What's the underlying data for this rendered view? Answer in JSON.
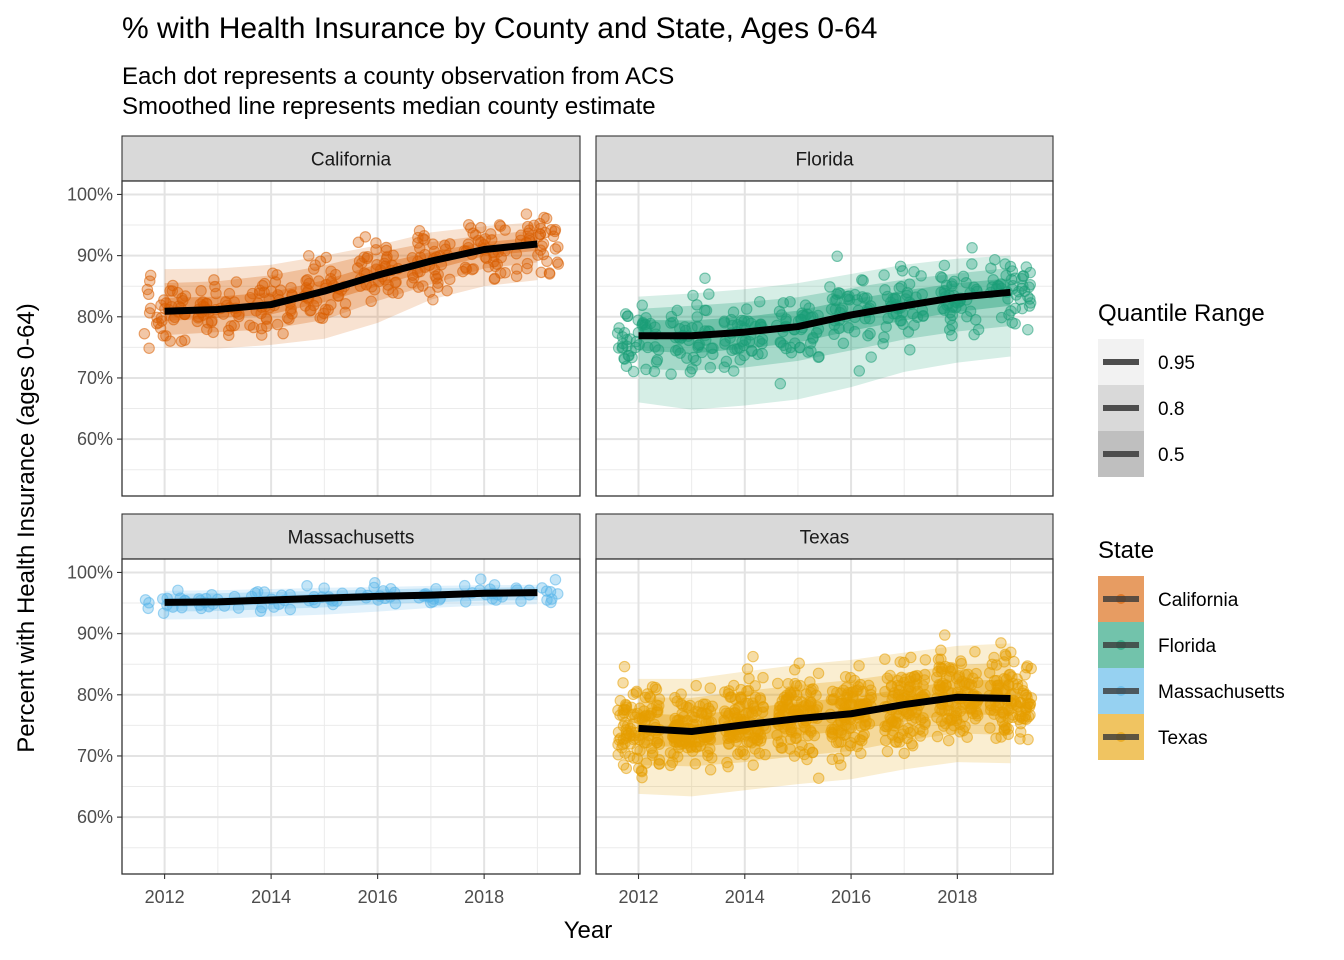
{
  "chart_data": {
    "type": "scatter",
    "title": "% with Health Insurance by County and State, Ages 0-64",
    "subtitle_lines": [
      "Each dot represents a county observation from ACS",
      "Smoothed line represents median county estimate"
    ],
    "xlabel": "Year",
    "ylabel": "Percent with Health Insurance (ages 0-64)",
    "x_ticks": [
      2012,
      2014,
      2016,
      2018
    ],
    "x_tick_labels": [
      "2012",
      "2014",
      "2016",
      "2018"
    ],
    "y_ticks": [
      60,
      70,
      80,
      90,
      100
    ],
    "y_tick_labels": [
      "60%",
      "70%",
      "80%",
      "90%",
      "100%"
    ],
    "xlim": [
      2011.2,
      2019.8
    ],
    "ylim": [
      50.7,
      102.2
    ],
    "grid": true,
    "legend_position": "right",
    "quantile_legend": {
      "title": "Quantile Range",
      "levels": [
        "0.95",
        "0.8",
        "0.5"
      ]
    },
    "state_legend": {
      "title": "State",
      "entries": [
        "California",
        "Florida",
        "Massachusetts",
        "Texas"
      ]
    },
    "colors": {
      "California": "#D95F02",
      "Florida": "#1B9E77",
      "Massachusetts": "#56B4E9",
      "Texas": "#E69F00"
    },
    "years": [
      2012,
      2013,
      2014,
      2015,
      2016,
      2017,
      2018,
      2019
    ],
    "panels": [
      {
        "state": "California",
        "median": [
          80.9,
          81.2,
          82.0,
          84.2,
          86.8,
          89.1,
          91.0,
          91.9
        ],
        "q50": [
          [
            79.3,
            83.1
          ],
          [
            79.8,
            83.3
          ],
          [
            80.4,
            84.0
          ],
          [
            82.4,
            86.0
          ],
          [
            85.0,
            88.6
          ],
          [
            87.6,
            90.6
          ],
          [
            89.9,
            92.2
          ],
          [
            90.8,
            93.0
          ]
        ],
        "q80": [
          [
            77.0,
            85.5
          ],
          [
            77.5,
            85.8
          ],
          [
            78.0,
            86.8
          ],
          [
            79.5,
            88.4
          ],
          [
            82.6,
            90.5
          ],
          [
            85.3,
            92.2
          ],
          [
            87.9,
            93.3
          ],
          [
            88.9,
            94.2
          ]
        ],
        "q95": [
          [
            74.9,
            87.8
          ],
          [
            74.8,
            87.9
          ],
          [
            75.4,
            88.5
          ],
          [
            76.4,
            90.0
          ],
          [
            79.0,
            91.7
          ],
          [
            82.8,
            93.8
          ],
          [
            85.0,
            94.8
          ],
          [
            86.0,
            95.5
          ]
        ],
        "points_per_year": 40,
        "spread": 3.8
      },
      {
        "state": "Florida",
        "median": [
          76.9,
          76.9,
          77.5,
          78.4,
          80.3,
          81.8,
          83.2,
          84.0
        ],
        "q50": [
          [
            74.5,
            79.5
          ],
          [
            74.0,
            79.4
          ],
          [
            74.8,
            80.0
          ],
          [
            75.8,
            81.0
          ],
          [
            77.7,
            82.8
          ],
          [
            79.4,
            84.3
          ],
          [
            80.8,
            85.5
          ],
          [
            81.8,
            86.3
          ]
        ],
        "q80": [
          [
            71.5,
            81.3
          ],
          [
            71.2,
            81.8
          ],
          [
            71.7,
            82.4
          ],
          [
            72.8,
            83.2
          ],
          [
            74.5,
            84.7
          ],
          [
            76.3,
            86.1
          ],
          [
            77.6,
            87.1
          ],
          [
            78.5,
            88.0
          ]
        ],
        "q95": [
          [
            66.0,
            83.3
          ],
          [
            64.8,
            83.8
          ],
          [
            65.5,
            84.5
          ],
          [
            66.5,
            85.5
          ],
          [
            68.5,
            87.0
          ],
          [
            71.0,
            88.5
          ],
          [
            72.5,
            89.5
          ],
          [
            73.5,
            90.0
          ]
        ],
        "points_per_year": 45,
        "spread": 4.4
      },
      {
        "state": "Massachusetts",
        "median": [
          95.1,
          95.2,
          95.5,
          95.8,
          96.1,
          96.3,
          96.6,
          96.7
        ],
        "q50": [
          [
            94.4,
            95.8
          ],
          [
            94.5,
            95.9
          ],
          [
            94.8,
            96.2
          ],
          [
            95.1,
            96.5
          ],
          [
            95.5,
            96.7
          ],
          [
            95.7,
            96.9
          ],
          [
            96.0,
            97.1
          ],
          [
            96.1,
            97.2
          ]
        ],
        "q80": [
          [
            93.6,
            96.5
          ],
          [
            93.7,
            96.6
          ],
          [
            94.0,
            96.8
          ],
          [
            94.3,
            97.0
          ],
          [
            94.8,
            97.2
          ],
          [
            95.1,
            97.4
          ],
          [
            95.4,
            97.5
          ],
          [
            95.5,
            97.6
          ]
        ],
        "q95": [
          [
            92.3,
            97.0
          ],
          [
            92.4,
            97.1
          ],
          [
            92.8,
            97.3
          ],
          [
            93.1,
            97.5
          ],
          [
            93.6,
            97.6
          ],
          [
            94.2,
            97.8
          ],
          [
            94.6,
            97.9
          ],
          [
            94.8,
            98.0
          ]
        ],
        "points_per_year": 13,
        "spread": 1.3
      },
      {
        "state": "Texas",
        "median": [
          74.5,
          74.0,
          75.1,
          76.1,
          76.9,
          78.4,
          79.6,
          79.4
        ],
        "q50": [
          [
            71.8,
            77.0
          ],
          [
            71.3,
            76.6
          ],
          [
            72.3,
            77.7
          ],
          [
            73.3,
            78.8
          ],
          [
            74.2,
            79.6
          ],
          [
            75.6,
            81.0
          ],
          [
            76.9,
            82.3
          ],
          [
            76.6,
            82.5
          ]
        ],
        "q80": [
          [
            68.5,
            79.6
          ],
          [
            68.3,
            79.5
          ],
          [
            69.0,
            80.6
          ],
          [
            70.0,
            81.6
          ],
          [
            70.8,
            82.4
          ],
          [
            72.5,
            83.6
          ],
          [
            73.7,
            84.9
          ],
          [
            73.4,
            85.3
          ]
        ],
        "q95": [
          [
            63.8,
            82.6
          ],
          [
            63.4,
            82.6
          ],
          [
            64.4,
            83.8
          ],
          [
            65.4,
            84.9
          ],
          [
            66.2,
            85.7
          ],
          [
            67.8,
            86.9
          ],
          [
            69.0,
            88.0
          ],
          [
            68.8,
            88.4
          ]
        ],
        "points_per_year": 110,
        "spread": 5.0
      }
    ]
  }
}
